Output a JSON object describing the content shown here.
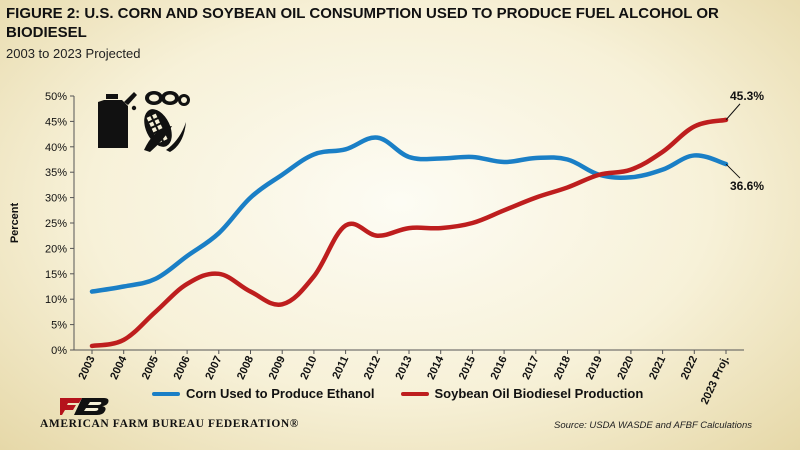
{
  "header": {
    "title": "FIGURE 2: U.S. CORN AND SOYBEAN OIL CONSUMPTION USED TO PRODUCE FUEL ALCOHOL OR BIODIESEL",
    "subtitle": "2003 to 2023 Projected"
  },
  "icons": {
    "fuel_can": "fuel-can-icon",
    "corn": "corn-icon",
    "soybean": "soybean-icon"
  },
  "footer": {
    "org_name": "AMERICAN FARM BUREAU FEDERATION®",
    "source": "Source: USDA WASDE and AFBF Calculations"
  },
  "colors": {
    "corn": "#1a7fc6",
    "soy": "#be1e1e"
  },
  "chart_data": {
    "type": "line",
    "title": "FIGURE 2: U.S. CORN AND SOYBEAN OIL CONSUMPTION USED TO PRODUCE FUEL ALCOHOL OR BIODIESEL",
    "subtitle": "2003 to 2023 Projected",
    "xlabel": "",
    "ylabel": "Percent",
    "ylim": [
      0,
      50
    ],
    "yticks": [
      "0%",
      "5%",
      "10%",
      "15%",
      "20%",
      "25%",
      "30%",
      "35%",
      "40%",
      "45%",
      "50%"
    ],
    "categories": [
      "2003",
      "2004",
      "2005",
      "2006",
      "2007",
      "2008",
      "2009",
      "2010",
      "2011",
      "2012",
      "2013",
      "2014",
      "2015",
      "2016",
      "2017",
      "2018",
      "2019",
      "2020",
      "2021",
      "2022",
      "2023 Proj."
    ],
    "series": [
      {
        "name": "Corn Used to Produce Ethanol",
        "color": "#1a7fc6",
        "values": [
          11.5,
          12.5,
          14.0,
          18.5,
          23.0,
          30.0,
          34.5,
          38.5,
          39.5,
          41.8,
          38.0,
          37.7,
          38.0,
          37.0,
          37.8,
          37.5,
          34.5,
          34.0,
          35.5,
          38.3,
          36.6
        ]
      },
      {
        "name": "Soybean Oil Biodiesel Production",
        "color": "#be1e1e",
        "values": [
          0.8,
          2.0,
          7.5,
          13.0,
          15.0,
          11.5,
          9.0,
          14.5,
          24.5,
          22.5,
          24.0,
          24.0,
          25.0,
          27.5,
          30.0,
          32.0,
          34.5,
          35.5,
          39.0,
          44.0,
          45.3
        ]
      }
    ],
    "annotations": [
      {
        "series": "Soybean Oil Biodiesel Production",
        "category": "2023 Proj.",
        "text": "45.3%"
      },
      {
        "series": "Corn Used to Produce Ethanol",
        "category": "2023 Proj.",
        "text": "36.6%"
      }
    ],
    "legend_position": "bottom",
    "grid": false
  }
}
